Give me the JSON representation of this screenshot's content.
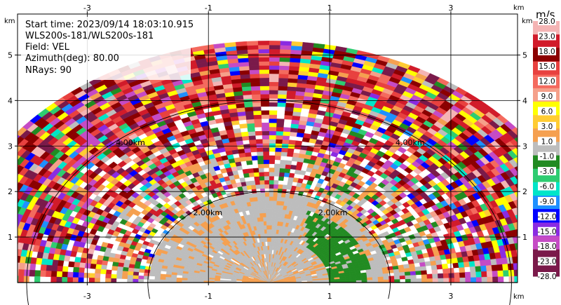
{
  "chart_data": {
    "type": "heatmap",
    "plot_kind": "radar RHI/sector velocity display",
    "info": [
      "Start time: 2023/09/14 18:03:10.915",
      "WLS200s-181/WLS200s-181",
      "Field: VEL",
      "Azimuth(deg): 80.00",
      "NRays: 90"
    ],
    "field": "VEL",
    "azimuth_deg": 80.0,
    "n_rays": 90,
    "xlim": [
      -4.15,
      4.1
    ],
    "ylim": [
      0,
      5.9
    ],
    "x_ticks": [
      "-3",
      "-1",
      "1",
      "3"
    ],
    "x_tick_values": [
      -3,
      -1,
      1,
      3
    ],
    "y_ticks": [
      "1",
      "2",
      "3",
      "4",
      "5"
    ],
    "y_tick_values": [
      1,
      2,
      3,
      4,
      5
    ],
    "x_unit": "km",
    "y_unit": "km",
    "range_rings": [
      {
        "radius_km": 2,
        "labels": [
          "2.00km",
          "2.00km"
        ]
      },
      {
        "radius_km": 4,
        "labels": [
          "4.00km",
          "4.00km"
        ]
      }
    ],
    "max_range_km": 5.3,
    "grid": true,
    "colorbar": {
      "title": "m/s",
      "labels": [
        "28.0",
        "23.0",
        "18.0",
        "15.0",
        "12.0",
        "9.0",
        "6.0",
        "3.0",
        "1.0",
        "-1.0",
        "-3.0",
        "-6.0",
        "-9.0",
        "-12.0",
        "-15.0",
        "-18.0",
        "-23.0",
        "-28.0"
      ],
      "colors": [
        "#f4b4b4",
        "#d11b2a",
        "#8b0000",
        "#e8413f",
        "#f46a5e",
        "#f5a08a",
        "#ffff00",
        "#ffcc33",
        "#f5a050",
        "#bdbdbd",
        "#228b22",
        "#2ecc71",
        "#00e5c8",
        "#1e90ff",
        "#0000ff",
        "#8a2be2",
        "#c54bc5",
        "#7a1a4a",
        "#7a1a4a"
      ]
    }
  }
}
